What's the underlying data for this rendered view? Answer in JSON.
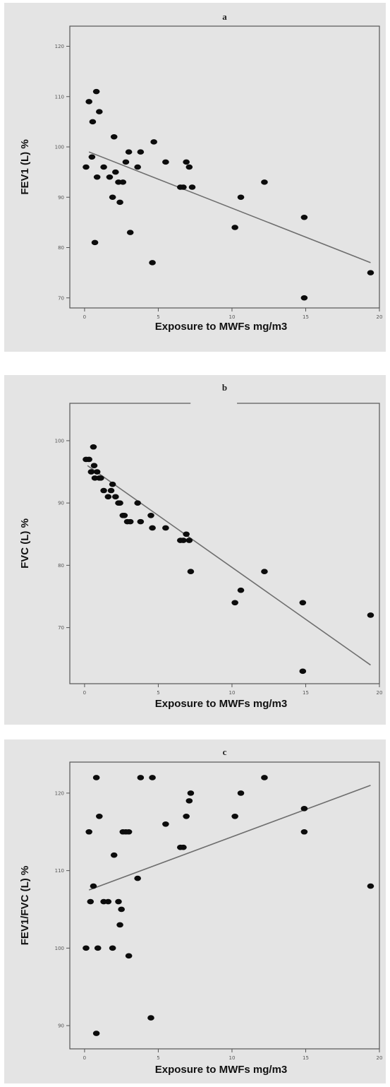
{
  "chart_data": [
    {
      "type": "scatter",
      "title": "a",
      "xlabel": "Exposure to MWFs mg/m3",
      "ylabel": "FEV1 (L) %",
      "xlim": [
        -1,
        20
      ],
      "ylim": [
        68,
        124
      ],
      "xticks": [
        0,
        5,
        10,
        15,
        20
      ],
      "yticks": [
        70,
        80,
        90,
        100,
        110,
        120
      ],
      "xtick_labels": [
        "0",
        "5",
        "10",
        "15",
        "20"
      ],
      "ytick_labels": [
        "70",
        "80",
        "90",
        "100",
        "110",
        "120"
      ],
      "fit_line": {
        "x": [
          0.3,
          19.4
        ],
        "y": [
          99,
          77
        ]
      },
      "points": {
        "x": [
          0.1,
          0.3,
          0.5,
          0.55,
          0.7,
          0.8,
          1.0,
          0.85,
          1.3,
          1.7,
          1.9,
          2.0,
          2.1,
          2.3,
          2.4,
          2.6,
          2.8,
          3.0,
          3.1,
          3.6,
          3.8,
          4.6,
          4.7,
          5.5,
          6.5,
          6.7,
          6.9,
          7.1,
          7.3,
          10.2,
          10.6,
          12.2,
          14.9,
          14.9,
          19.4
        ],
        "y": [
          96,
          109,
          98,
          105,
          81,
          111,
          107,
          94,
          96,
          94,
          90,
          102,
          95,
          93,
          89,
          93,
          97,
          99,
          83,
          96,
          99,
          77,
          101,
          97,
          92,
          92,
          97,
          96,
          92,
          84,
          90,
          93,
          86,
          70,
          75
        ]
      }
    },
    {
      "type": "scatter",
      "title": "b",
      "xlabel": "Exposure to MWFs mg/m3",
      "ylabel": "FVC (L) %",
      "xlim": [
        -1,
        20
      ],
      "ylim": [
        61,
        106
      ],
      "xticks": [
        0,
        5,
        10,
        15,
        20
      ],
      "yticks": [
        70,
        80,
        90,
        100
      ],
      "xtick_labels": [
        "0",
        "5",
        "10",
        "15",
        "20"
      ],
      "ytick_labels": [
        "70",
        "80",
        "90",
        "100"
      ],
      "fit_line": {
        "x": [
          0.2,
          19.4
        ],
        "y": [
          96,
          64
        ]
      },
      "points": {
        "x": [
          0.1,
          0.3,
          0.45,
          0.6,
          0.65,
          0.7,
          0.85,
          1.0,
          1.1,
          1.3,
          1.6,
          1.8,
          1.9,
          2.1,
          2.3,
          2.4,
          2.6,
          2.7,
          2.9,
          3.1,
          3.6,
          3.8,
          4.5,
          4.6,
          5.5,
          6.5,
          6.7,
          6.9,
          7.1,
          7.2,
          10.2,
          10.6,
          12.2,
          14.8,
          14.8,
          19.4
        ],
        "y": [
          97,
          97,
          95,
          99,
          96,
          94,
          95,
          94,
          94,
          92,
          91,
          92,
          93,
          91,
          90,
          90,
          88,
          88,
          87,
          87,
          90,
          87,
          88,
          86,
          86,
          84,
          84,
          85,
          84,
          79,
          74,
          76,
          79,
          74,
          63,
          72
        ]
      }
    },
    {
      "type": "scatter",
      "title": "c",
      "xlabel": "Exposure to MWFs mg/m3",
      "ylabel": "FEV1/FVC (L) %",
      "xlim": [
        -1,
        20
      ],
      "ylim": [
        87,
        124
      ],
      "xticks": [
        0,
        5,
        10,
        15,
        20
      ],
      "yticks": [
        90,
        100,
        110,
        120
      ],
      "xtick_labels": [
        "0",
        "5",
        "10",
        "15",
        "20"
      ],
      "ytick_labels": [
        "90",
        "100",
        "110",
        "120"
      ],
      "fit_line": {
        "x": [
          0.3,
          19.4
        ],
        "y": [
          107.5,
          121
        ]
      },
      "points": {
        "x": [
          0.1,
          0.3,
          0.4,
          0.6,
          0.8,
          0.8,
          0.9,
          1.0,
          1.3,
          1.6,
          1.9,
          2.0,
          2.3,
          2.4,
          2.5,
          2.6,
          2.8,
          3.0,
          3.0,
          3.6,
          3.8,
          4.5,
          4.6,
          5.5,
          6.5,
          6.7,
          6.9,
          7.1,
          7.2,
          10.2,
          10.6,
          12.2,
          14.9,
          14.9,
          19.4
        ],
        "y": [
          100,
          115,
          106,
          108,
          89,
          122,
          100,
          117,
          106,
          106,
          100,
          112,
          106,
          103,
          105,
          115,
          115,
          99,
          115,
          109,
          122,
          91,
          122,
          116,
          113,
          113,
          117,
          119,
          120,
          117,
          120,
          122,
          118,
          115,
          108
        ]
      }
    }
  ]
}
